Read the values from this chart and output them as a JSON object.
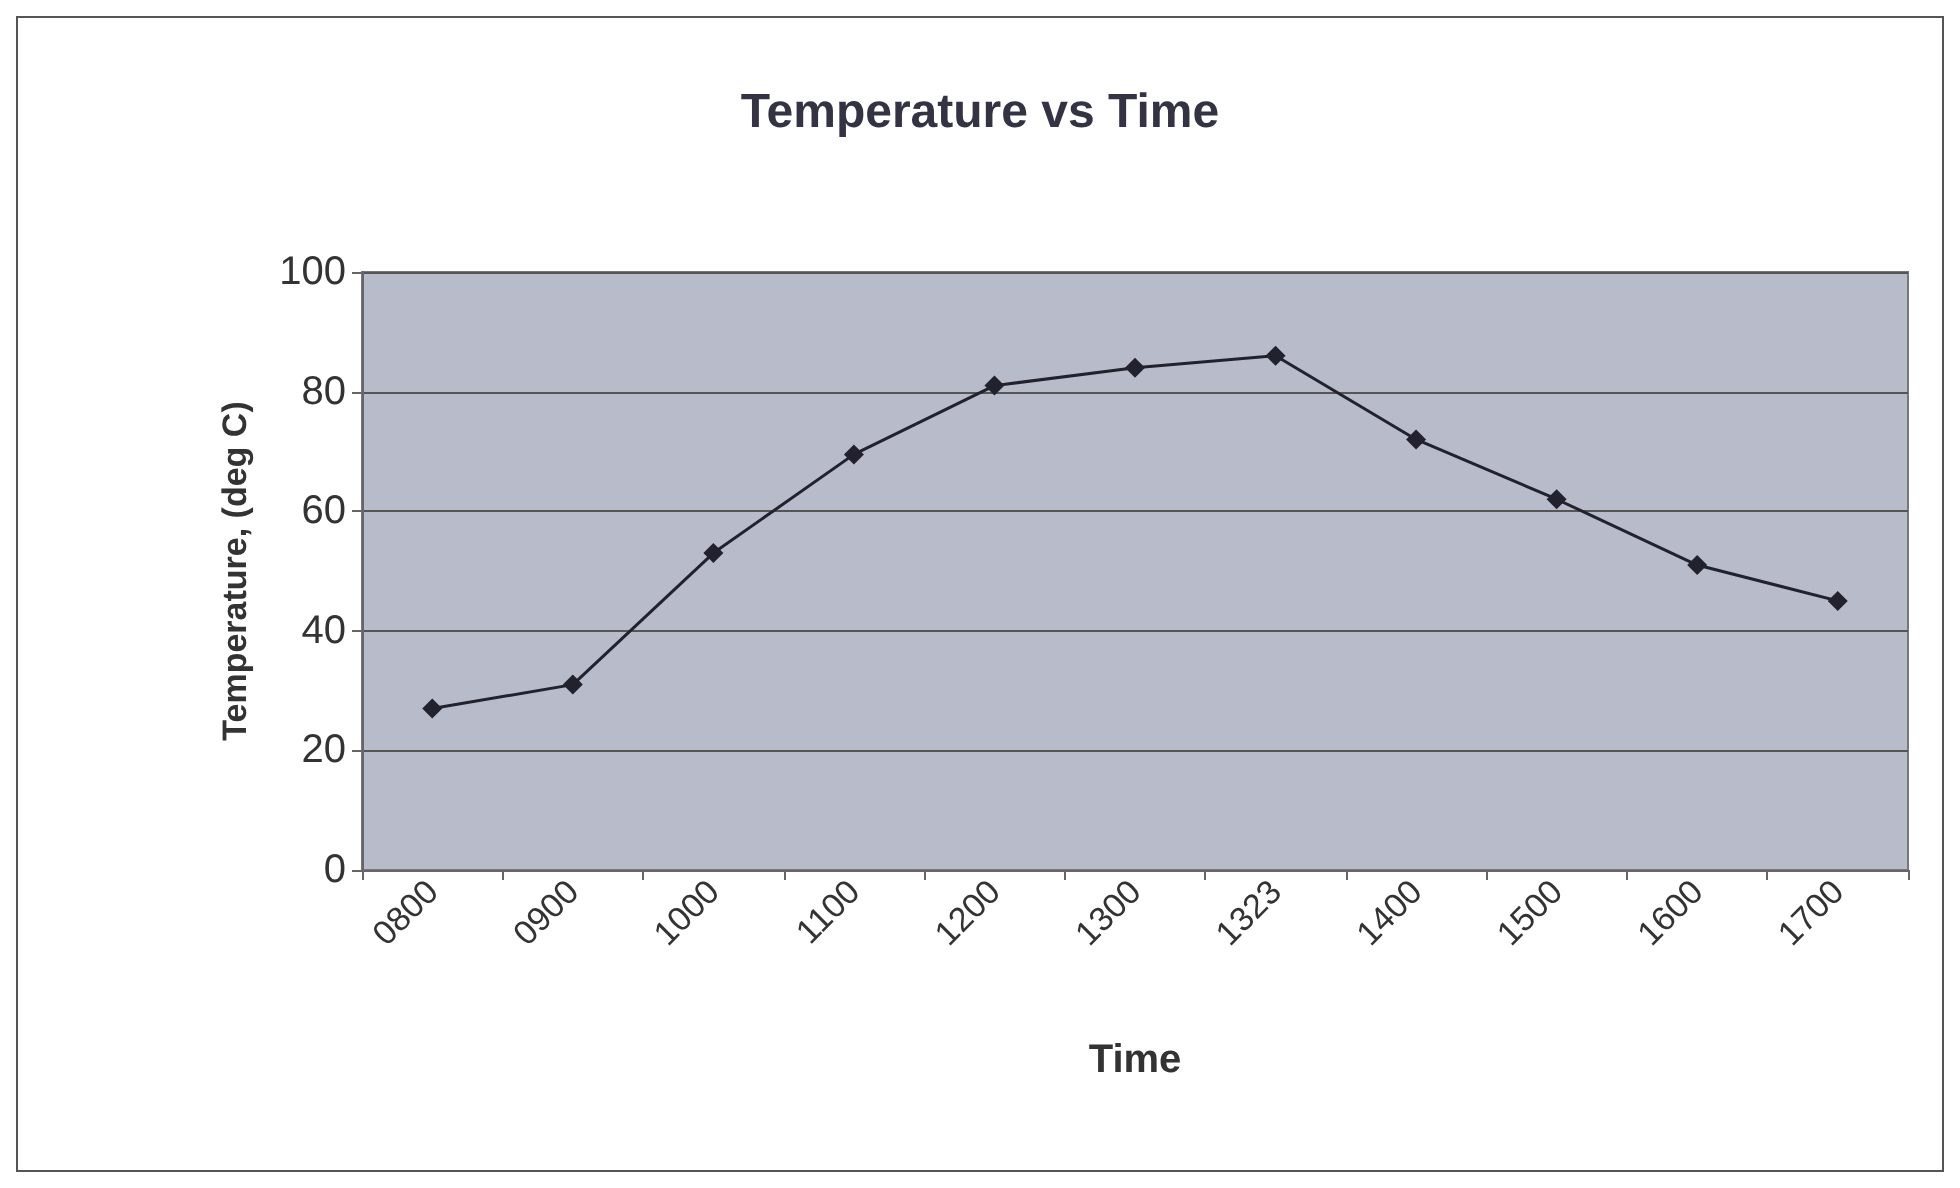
{
  "chart_data": {
    "type": "line",
    "title": "Temperature vs Time",
    "xlabel": "Time",
    "ylabel": "Temperature, (deg C)",
    "categories": [
      "0800",
      "0900",
      "1000",
      "1100",
      "1200",
      "1300",
      "1323",
      "1400",
      "1500",
      "1600",
      "1700"
    ],
    "series": [
      {
        "color": "#22222e",
        "values": [
          27,
          31,
          53,
          69.5,
          81,
          84,
          86,
          72,
          62,
          51,
          45
        ]
      }
    ],
    "ylim": [
      0,
      100
    ],
    "yticks": [
      0,
      20,
      40,
      60,
      80,
      100
    ],
    "grid": "y",
    "marker": "diamond",
    "line_style": "solid"
  }
}
